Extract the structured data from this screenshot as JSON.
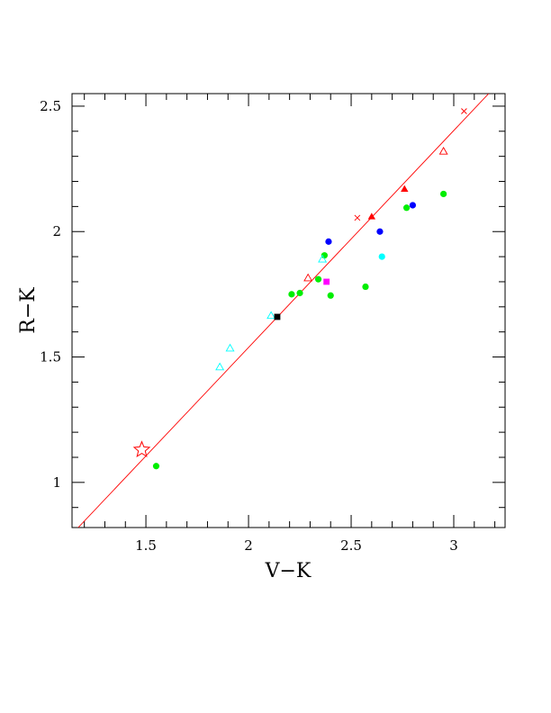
{
  "chart_data": {
    "type": "scatter",
    "xlabel": "V−K",
    "ylabel": "R−K",
    "xlim": [
      1.14,
      3.25
    ],
    "ylim": [
      0.82,
      2.55
    ],
    "x_ticks": [
      {
        "value": 1.5,
        "label": "1.5"
      },
      {
        "value": 2,
        "label": "2"
      },
      {
        "value": 2.5,
        "label": "2.5"
      },
      {
        "value": 3,
        "label": "3"
      }
    ],
    "y_ticks": [
      {
        "value": 1,
        "label": "1"
      },
      {
        "value": 1.5,
        "label": "1.5"
      },
      {
        "value": 2,
        "label": "2"
      },
      {
        "value": 2.5,
        "label": "2.5"
      }
    ],
    "x_minor_step": 0.1,
    "y_minor_step": 0.1,
    "line": {
      "color": "#ff0000",
      "points": [
        [
          1.17,
          0.82
        ],
        [
          3.17,
          2.55
        ]
      ]
    },
    "series": [
      {
        "marker": "star-open",
        "color": "#ff0000",
        "points": [
          [
            1.48,
            1.13
          ]
        ]
      },
      {
        "marker": "circle",
        "color": "#00ee00",
        "points": [
          [
            1.55,
            1.065
          ],
          [
            2.21,
            1.75
          ],
          [
            2.25,
            1.755
          ],
          [
            2.34,
            1.81
          ],
          [
            2.37,
            1.905
          ],
          [
            2.4,
            1.745
          ],
          [
            2.57,
            1.78
          ],
          [
            2.77,
            2.095
          ],
          [
            2.95,
            2.15
          ]
        ]
      },
      {
        "marker": "triangle-open",
        "color": "#00ffff",
        "points": [
          [
            1.86,
            1.46
          ],
          [
            1.91,
            1.535
          ],
          [
            2.11,
            1.665
          ],
          [
            2.36,
            1.89
          ]
        ]
      },
      {
        "marker": "triangle-open",
        "color": "#ff0000",
        "points": [
          [
            2.29,
            1.815
          ],
          [
            2.95,
            2.32
          ]
        ]
      },
      {
        "marker": "triangle",
        "color": "#ff0000",
        "points": [
          [
            2.6,
            2.06
          ],
          [
            2.76,
            2.17
          ]
        ]
      },
      {
        "marker": "circle",
        "color": "#0000ff",
        "points": [
          [
            2.39,
            1.96
          ],
          [
            2.64,
            2.0
          ],
          [
            2.8,
            2.105
          ]
        ]
      },
      {
        "marker": "circle",
        "color": "#00ffff",
        "points": [
          [
            2.65,
            1.9
          ]
        ]
      },
      {
        "marker": "square",
        "color": "#000000",
        "points": [
          [
            2.14,
            1.66
          ]
        ]
      },
      {
        "marker": "square",
        "color": "#ff00ff",
        "points": [
          [
            2.38,
            1.8
          ]
        ]
      },
      {
        "marker": "cross",
        "color": "#ff0000",
        "points": [
          [
            2.53,
            2.055
          ],
          [
            3.05,
            2.48
          ]
        ]
      }
    ]
  }
}
